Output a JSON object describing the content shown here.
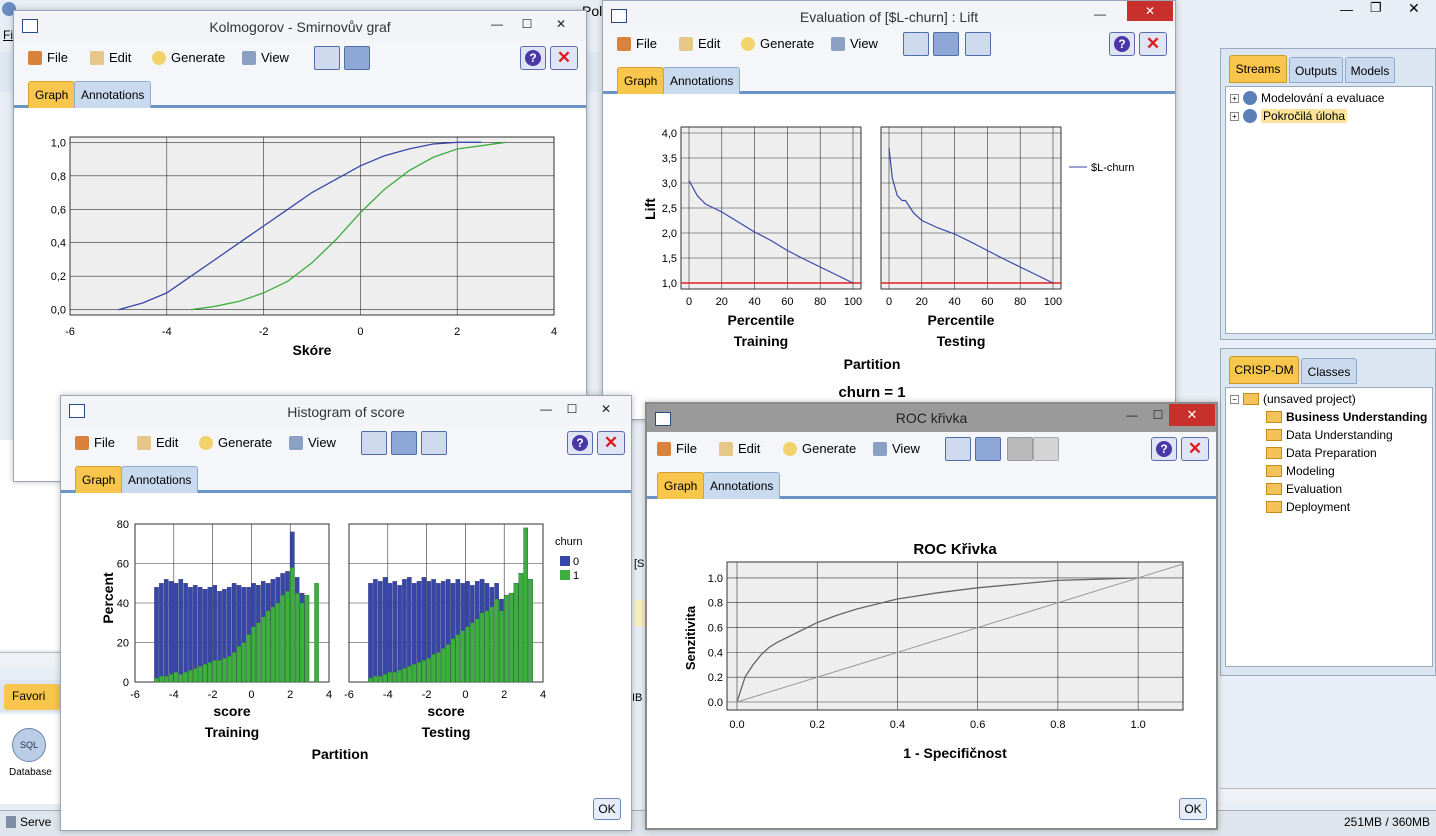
{
  "bg": {
    "fi": "Fi",
    "pol": "Pol",
    "favorites": "Favori",
    "database": "Database",
    "server": "Serve",
    "memory": "251MB / 360MB",
    "sl": "[Sl",
    "ib": "IB"
  },
  "common": {
    "menu": [
      "File",
      "Edit",
      "Generate",
      "View"
    ],
    "tab_graph": "Graph",
    "tab_annotations": "Annotations",
    "ok": "OK",
    "help": "?",
    "close": "✕"
  },
  "sidebar": {
    "tabs": [
      "Streams",
      "Outputs",
      "Models"
    ],
    "streams": [
      "Modelování a evaluace",
      "Pokročilá úloha"
    ],
    "crisp_tabs": [
      "CRISP-DM",
      "Classes"
    ],
    "project": "(unsaved project)",
    "phases": [
      "Business Understanding",
      "Data Understanding",
      "Data Preparation",
      "Modeling",
      "Evaluation",
      "Deployment"
    ]
  },
  "ks": {
    "title": "Kolmogorov - Smirnovův graf",
    "xlabel": "Skóre",
    "xticks": [
      "-6",
      "-4",
      "-2",
      "0",
      "2",
      "4"
    ],
    "yticks": [
      "0,0",
      "0,2",
      "0,4",
      "0,6",
      "0,8",
      "1,0"
    ]
  },
  "lift": {
    "title": "Evaluation of [$L-churn] : Lift",
    "ylabel": "Lift",
    "yticks": [
      "1,0",
      "1,5",
      "2,0",
      "2,5",
      "3,0",
      "3,5",
      "4,0"
    ],
    "xticks": [
      "0",
      "20",
      "40",
      "60",
      "80",
      "100"
    ],
    "panel_xlabel": "Percentile",
    "panels": [
      "Training",
      "Testing"
    ],
    "partition": "Partition",
    "legend": "$L-churn",
    "footer": "churn = 1"
  },
  "hist": {
    "title": "Histogram of score",
    "ylabel": "Percent",
    "yticks": [
      "0",
      "20",
      "40",
      "60",
      "80"
    ],
    "xticks": [
      "-6",
      "-4",
      "-2",
      "0",
      "2",
      "4"
    ],
    "xlabel": "score",
    "panels": [
      "Training",
      "Testing"
    ],
    "partition": "Partition",
    "legend_title": "churn",
    "legend": [
      "0",
      "1"
    ]
  },
  "roc": {
    "title": "ROC křivka",
    "chart_title": "ROC Křivka",
    "xlabel": "1 - Specifičnost",
    "ylabel": "Senzitivita",
    "ticks": [
      "0.0",
      "0.2",
      "0.4",
      "0.6",
      "0.8",
      "1.0"
    ]
  },
  "colors": {
    "series_blue": "#3747a8",
    "series_green": "#3dae3f",
    "baseline_red": "#e02020",
    "tab_active": "#f8c54d",
    "plot_bg": "#eeeeee"
  },
  "chart_data": [
    {
      "type": "line",
      "title": "Kolmogorov - Smirnovův graf",
      "xlabel": "Skóre",
      "ylabel": "",
      "xlim": [
        -6,
        4
      ],
      "ylim": [
        0,
        1
      ],
      "grid": true,
      "series": [
        {
          "color": "#3747a8",
          "x": [
            -5,
            -4.5,
            -4,
            -3.5,
            -3,
            -2.5,
            -2,
            -1.5,
            -1,
            -0.5,
            0,
            0.5,
            1,
            1.5,
            2,
            2.5
          ],
          "y": [
            0,
            0.04,
            0.1,
            0.2,
            0.3,
            0.4,
            0.5,
            0.6,
            0.7,
            0.78,
            0.86,
            0.92,
            0.96,
            0.99,
            1,
            1
          ]
        },
        {
          "color": "#3dae3f",
          "x": [
            -3.5,
            -3,
            -2.5,
            -2,
            -1.5,
            -1,
            -0.5,
            0,
            0.5,
            1,
            1.5,
            2,
            2.5,
            3
          ],
          "y": [
            0,
            0.02,
            0.05,
            0.1,
            0.17,
            0.28,
            0.42,
            0.58,
            0.72,
            0.83,
            0.91,
            0.96,
            0.98,
            1
          ]
        }
      ]
    },
    {
      "type": "line",
      "title": "Evaluation of [$L-churn] : Lift",
      "ylabel": "Lift",
      "ylim": [
        1,
        4
      ],
      "xlim": [
        0,
        100
      ],
      "panels": [
        {
          "name": "Training",
          "series": [
            {
              "name": "$L-churn",
              "x": [
                0,
                5,
                10,
                15,
                20,
                30,
                40,
                50,
                60,
                70,
                80,
                90,
                100
              ],
              "y": [
                3.05,
                2.75,
                2.58,
                2.5,
                2.42,
                2.22,
                2.02,
                1.85,
                1.65,
                1.48,
                1.32,
                1.16,
                1
              ]
            }
          ]
        },
        {
          "name": "Testing",
          "series": [
            {
              "name": "$L-churn",
              "x": [
                0,
                2,
                5,
                8,
                10,
                15,
                20,
                30,
                40,
                50,
                60,
                70,
                80,
                90,
                100
              ],
              "y": [
                3.7,
                3.1,
                2.75,
                2.65,
                2.65,
                2.4,
                2.25,
                2.1,
                1.98,
                1.82,
                1.65,
                1.48,
                1.32,
                1.16,
                1
              ]
            }
          ]
        }
      ]
    },
    {
      "type": "bar",
      "title": "Histogram of score",
      "xlabel": "score",
      "ylabel": "Percent",
      "ylim": [
        0,
        80
      ],
      "xlim": [
        -6,
        4
      ],
      "panels": [
        {
          "name": "Training",
          "x": [
            -5.0,
            -4.75,
            -4.5,
            -4.25,
            -4.0,
            -3.75,
            -3.5,
            -3.25,
            -3.0,
            -2.75,
            -2.5,
            -2.25,
            -2.0,
            -1.75,
            -1.5,
            -1.25,
            -1.0,
            -0.75,
            -0.5,
            -0.25,
            0.0,
            0.25,
            0.5,
            0.75,
            1.0,
            1.25,
            1.5,
            1.75,
            2.0,
            2.25,
            2.5,
            2.75,
            3.0,
            3.25
          ],
          "series": [
            {
              "name": "0",
              "values": [
                48,
                50,
                52,
                51,
                50,
                52,
                50,
                48,
                49,
                48,
                47,
                48,
                49,
                46,
                47,
                48,
                50,
                49,
                48,
                48,
                50,
                49,
                51,
                50,
                52,
                53,
                55,
                56,
                76,
                53,
                45,
                40,
                0,
                0
              ]
            },
            {
              "name": "1",
              "values": [
                2,
                3,
                3,
                4,
                5,
                4,
                5,
                6,
                7,
                8,
                9,
                10,
                11,
                11,
                12,
                13,
                15,
                18,
                20,
                24,
                28,
                30,
                33,
                36,
                38,
                40,
                44,
                46,
                58,
                45,
                40,
                44,
                0,
                50
              ]
            }
          ]
        },
        {
          "name": "Testing",
          "x": [
            -5.0,
            -4.75,
            -4.5,
            -4.25,
            -4.0,
            -3.75,
            -3.5,
            -3.25,
            -3.0,
            -2.75,
            -2.5,
            -2.25,
            -2.0,
            -1.75,
            -1.5,
            -1.25,
            -1.0,
            -0.75,
            -0.5,
            -0.25,
            0.0,
            0.25,
            0.5,
            0.75,
            1.0,
            1.25,
            1.5,
            1.75,
            2.0,
            2.25,
            2.5,
            2.75,
            3.0,
            3.25
          ],
          "series": [
            {
              "name": "0",
              "values": [
                50,
                52,
                51,
                53,
                50,
                51,
                49,
                52,
                53,
                50,
                51,
                53,
                51,
                52,
                50,
                51,
                52,
                50,
                52,
                50,
                51,
                49,
                51,
                52,
                50,
                48,
                50,
                42,
                44,
                45,
                50,
                55,
                78,
                52
              ]
            },
            {
              "name": "1",
              "values": [
                2,
                3,
                3,
                4,
                5,
                5,
                6,
                7,
                8,
                9,
                10,
                11,
                12,
                14,
                15,
                17,
                19,
                22,
                24,
                26,
                28,
                30,
                32,
                35,
                36,
                38,
                42,
                36,
                44,
                45,
                50,
                55,
                78,
                52
              ]
            }
          ]
        }
      ]
    },
    {
      "type": "line",
      "title": "ROC Křivka",
      "xlabel": "1 - Specifičnost",
      "ylabel": "Senzitivita",
      "xlim": [
        0,
        1
      ],
      "ylim": [
        0,
        1
      ],
      "series": [
        {
          "x": [
            0,
            0.01,
            0.02,
            0.04,
            0.06,
            0.08,
            0.1,
            0.15,
            0.2,
            0.25,
            0.3,
            0.4,
            0.5,
            0.6,
            0.7,
            0.8,
            0.9,
            1
          ],
          "y": [
            0,
            0.1,
            0.2,
            0.3,
            0.38,
            0.44,
            0.48,
            0.56,
            0.64,
            0.7,
            0.75,
            0.83,
            0.88,
            0.92,
            0.95,
            0.98,
            0.99,
            1
          ]
        },
        {
          "x": [
            0,
            1
          ],
          "y": [
            0,
            1
          ]
        }
      ]
    }
  ]
}
